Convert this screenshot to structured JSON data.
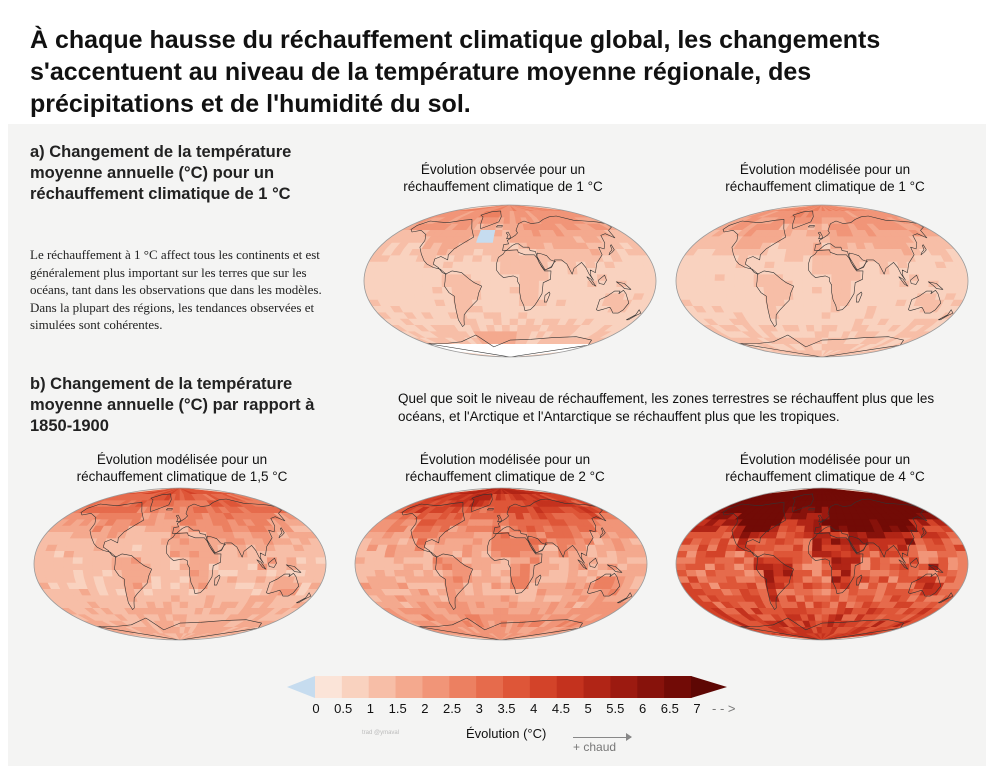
{
  "title": "À chaque hausse du réchauffement climatique global, les changements s'accentuent au niveau de la température moyenne régionale, des précipitations et de l'humidité du sol.",
  "section_a": {
    "title": "a) Changement de la température moyenne annuelle (°C) pour un réchauffement climatique de 1 °C",
    "text": "Le réchauffement à 1 °C affect tous les continents et est généralement plus important sur les terres que sur les océans, tant dans les observations que dans les modèles. Dans la plupart des régions, les tendances observées et simulées sont cohérentes.",
    "maps": [
      {
        "caption": "Évolution observée pour un réchauffement climatique de 1 °C",
        "level": 1,
        "observed": true
      },
      {
        "caption": "Évolution modélisée pour un réchauffement climatique de 1 °C",
        "level": 1,
        "observed": false
      }
    ]
  },
  "section_b": {
    "title": "b) Changement de la température moyenne annuelle (°C) par rapport à 1850-1900",
    "note": "Quel que soit le niveau de réchauffement, les zones terrestres se réchauffent plus que les océans, et l'Arctique et l'Antarctique se réchauffent plus que les tropiques.",
    "maps": [
      {
        "caption": "Évolution modélisée pour un réchauffement climatique de 1,5 °C",
        "level": 1.5
      },
      {
        "caption": "Évolution modélisée pour un réchauffement climatique de 2 °C",
        "level": 2
      },
      {
        "caption": "Évolution modélisée pour un réchauffement climatique de 4 °C",
        "level": 4
      }
    ]
  },
  "legend": {
    "ticks": [
      "0",
      "0.5",
      "1",
      "1.5",
      "2",
      "2.5",
      "3",
      "3.5",
      "4",
      "4.5",
      "5",
      "5.5",
      "6",
      "6.5",
      "7"
    ],
    "colors": [
      "#fbe4d8",
      "#f9d2bf",
      "#f7bea7",
      "#f4a98e",
      "#f19578",
      "#ec8061",
      "#e66b4c",
      "#de5638",
      "#d34329",
      "#c4321e",
      "#b12516",
      "#9c1a10",
      "#87120b",
      "#720b06"
    ],
    "negative_color": "#c6dcef",
    "unit": "Évolution (°C)",
    "hotter": "+ chaud",
    "more": "- - >"
  },
  "credit": "trad @ymaval"
}
